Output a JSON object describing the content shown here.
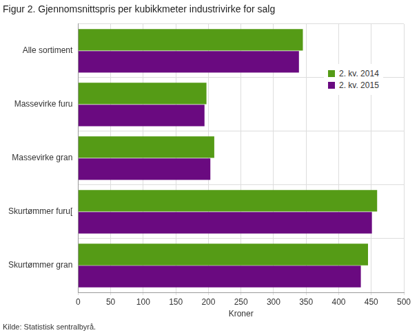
{
  "chart_data": {
    "type": "bar",
    "orientation": "horizontal",
    "title": "Figur 2. Gjennomsnittspris per kubikkmeter industrivirke for salg",
    "source": "Kilde: Statistisk sentralbyrå.",
    "x_label": "Kroner",
    "categories": [
      "Alle sortiment",
      "Massevirke furu",
      "Massevirke gran",
      "Skurtømmer furu[",
      "Skurtømmer gran"
    ],
    "series": [
      {
        "name": "2. kv. 2014",
        "color": "#559b16",
        "values": [
          345,
          197,
          209,
          459,
          445
        ]
      },
      {
        "name": "2. kv. 2015",
        "color": "#6a0a80",
        "values": [
          339,
          194,
          203,
          451,
          434
        ]
      }
    ],
    "xlim": [
      0,
      500
    ],
    "xticks": [
      0,
      50,
      100,
      150,
      200,
      250,
      300,
      350,
      400,
      450,
      500
    ],
    "grid": true,
    "legend": "upper right"
  }
}
